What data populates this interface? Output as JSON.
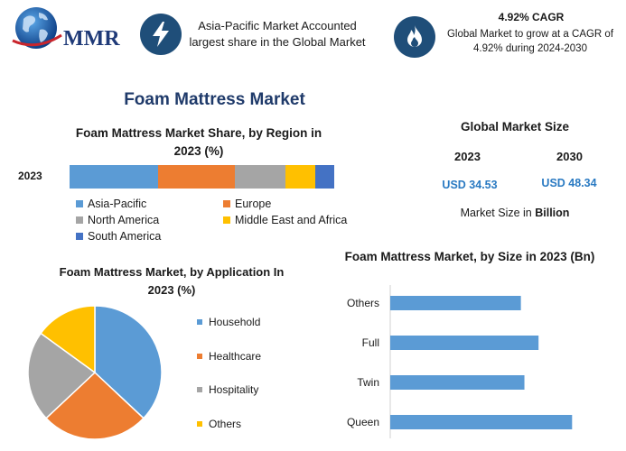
{
  "header": {
    "logo_text": "MMR",
    "highlight_1": "Asia-Pacific Market Accounted largest share in the Global Market",
    "highlight_2_title": "4.92% CAGR",
    "highlight_2_text": "Global Market to grow at a CAGR of 4.92% during 2024-2030",
    "icons": [
      "globe-icon",
      "lightning-bolt-icon",
      "flame-icon"
    ]
  },
  "title": "Foam Mattress Market",
  "global_market_size": {
    "title": "Global Market Size",
    "year_1": "2023",
    "year_2": "2030",
    "value_1": "USD 34.53",
    "value_2": "USD 48.34",
    "note_prefix": "Market Size in ",
    "note_unit": "Billion"
  },
  "chart_data": [
    {
      "type": "bar",
      "orientation": "horizontal-stacked",
      "title": "Foam Mattress Market Share, by Region in 2023 (%)",
      "categories": [
        "2023"
      ],
      "series": [
        {
          "name": "Asia-Pacific",
          "values": [
            33.5
          ],
          "color": "#5b9bd5"
        },
        {
          "name": "Europe",
          "values": [
            29
          ],
          "color": "#ed7d31"
        },
        {
          "name": "North America",
          "values": [
            19
          ],
          "color": "#a5a5a5"
        },
        {
          "name": "Middle East and Africa",
          "values": [
            11.5
          ],
          "color": "#ffc000"
        },
        {
          "name": "South America",
          "values": [
            7
          ],
          "color": "#4472c4"
        }
      ]
    },
    {
      "type": "pie",
      "title": "Foam Mattress Market, by Application In 2023 (%)",
      "labels": [
        "Household",
        "Healthcare",
        "Hospitality",
        "Others"
      ],
      "values": [
        37,
        26,
        22,
        15
      ],
      "colors": [
        "#5b9bd5",
        "#ed7d31",
        "#a5a5a5",
        "#ffc000"
      ]
    },
    {
      "type": "bar",
      "orientation": "horizontal",
      "title": "Foam Mattress Market, by Size in 2023 (Bn)",
      "categories": [
        "Others",
        "Full",
        "Twin",
        "Queen"
      ],
      "values": [
        7.4,
        8.4,
        7.6,
        10.3
      ],
      "color": "#5b9bd5"
    }
  ]
}
